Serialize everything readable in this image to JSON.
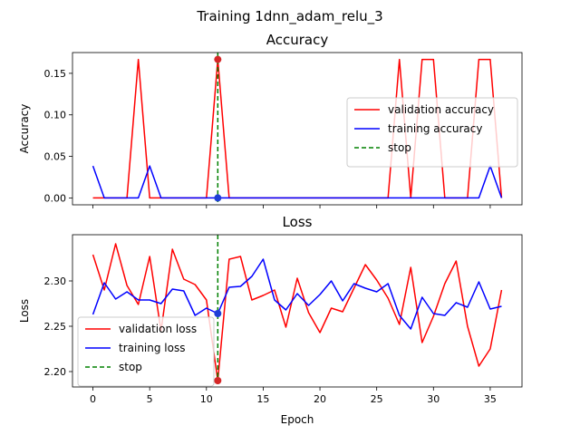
{
  "figure": {
    "suptitle": "Training 1dnn_adam_relu_3"
  },
  "chart_data": [
    {
      "type": "line",
      "title": "Accuracy",
      "xlabel": "",
      "ylabel": "Accuracy",
      "xlim": [
        -1.8,
        37.8
      ],
      "ylim": [
        -0.0083,
        0.175
      ],
      "xticks": [
        0,
        5,
        10,
        15,
        20,
        25,
        30,
        35
      ],
      "xtick_labels_visible": false,
      "yticks": [
        0.0,
        0.05,
        0.1,
        0.15
      ],
      "ytick_labels": [
        "0.00",
        "0.05",
        "0.10",
        "0.15"
      ],
      "legend_position": "center-right",
      "x": [
        0,
        1,
        2,
        3,
        4,
        5,
        6,
        7,
        8,
        9,
        10,
        11,
        12,
        13,
        14,
        15,
        16,
        17,
        18,
        19,
        20,
        21,
        22,
        23,
        24,
        25,
        26,
        27,
        28,
        29,
        30,
        31,
        32,
        33,
        34,
        35,
        36
      ],
      "series": [
        {
          "name": "validation accuracy",
          "color": "#ff0000",
          "values": [
            0,
            0,
            0,
            0,
            0.1667,
            0,
            0,
            0,
            0,
            0,
            0,
            0.1667,
            0,
            0,
            0,
            0,
            0,
            0,
            0,
            0,
            0,
            0,
            0,
            0,
            0,
            0,
            0,
            0.1667,
            0,
            0.1667,
            0.1667,
            0,
            0,
            0,
            0.1667,
            0.1667,
            0
          ]
        },
        {
          "name": "training accuracy",
          "color": "#0000ff",
          "values": [
            0.0385,
            0,
            0,
            0,
            0,
            0.0385,
            0,
            0,
            0,
            0,
            0,
            0,
            0,
            0,
            0,
            0,
            0,
            0,
            0,
            0,
            0,
            0,
            0,
            0,
            0,
            0,
            0,
            0,
            0,
            0,
            0,
            0,
            0,
            0,
            0,
            0.0385,
            0
          ]
        }
      ],
      "stop": {
        "name": "stop",
        "x": 11,
        "color": "#008000"
      },
      "markers": [
        {
          "x": 11,
          "y": 0.1667,
          "color": "#d62728"
        },
        {
          "x": 11,
          "y": 0.0,
          "color": "#1f3fd6"
        }
      ]
    },
    {
      "type": "line",
      "title": "Loss",
      "xlabel": "Epoch",
      "ylabel": "Loss",
      "xlim": [
        -1.8,
        37.8
      ],
      "ylim": [
        2.183,
        2.351
      ],
      "xticks": [
        0,
        5,
        10,
        15,
        20,
        25,
        30,
        35
      ],
      "xtick_labels": [
        "0",
        "5",
        "10",
        "15",
        "20",
        "25",
        "30",
        "35"
      ],
      "xtick_labels_visible": true,
      "yticks": [
        2.2,
        2.25,
        2.3
      ],
      "ytick_labels": [
        "2.20",
        "2.25",
        "2.30"
      ],
      "legend_position": "lower-left",
      "x": [
        0,
        1,
        2,
        3,
        4,
        5,
        6,
        7,
        8,
        9,
        10,
        11,
        12,
        13,
        14,
        15,
        16,
        17,
        18,
        19,
        20,
        21,
        22,
        23,
        24,
        25,
        26,
        27,
        28,
        29,
        30,
        31,
        32,
        33,
        34,
        35,
        36
      ],
      "series": [
        {
          "name": "validation loss",
          "color": "#ff0000",
          "values": [
            2.329,
            2.29,
            2.341,
            2.295,
            2.274,
            2.327,
            2.245,
            2.335,
            2.302,
            2.296,
            2.279,
            2.19,
            2.324,
            2.327,
            2.279,
            2.284,
            2.29,
            2.249,
            2.303,
            2.265,
            2.243,
            2.27,
            2.266,
            2.292,
            2.318,
            2.301,
            2.281,
            2.252,
            2.315,
            2.232,
            2.261,
            2.297,
            2.322,
            2.25,
            2.206,
            2.225,
            2.29
          ]
        },
        {
          "name": "training loss",
          "color": "#0000ff",
          "values": [
            2.263,
            2.298,
            2.28,
            2.288,
            2.279,
            2.279,
            2.275,
            2.291,
            2.289,
            2.262,
            2.27,
            2.264,
            2.293,
            2.294,
            2.305,
            2.324,
            2.279,
            2.268,
            2.286,
            2.273,
            2.285,
            2.3,
            2.278,
            2.297,
            2.292,
            2.288,
            2.297,
            2.262,
            2.247,
            2.282,
            2.264,
            2.262,
            2.276,
            2.271,
            2.299,
            2.269,
            2.272
          ]
        }
      ],
      "stop": {
        "name": "stop",
        "x": 11,
        "color": "#008000"
      },
      "markers": [
        {
          "x": 11,
          "y": 2.19,
          "color": "#d62728"
        },
        {
          "x": 11,
          "y": 2.264,
          "color": "#1f3fd6"
        }
      ]
    }
  ]
}
